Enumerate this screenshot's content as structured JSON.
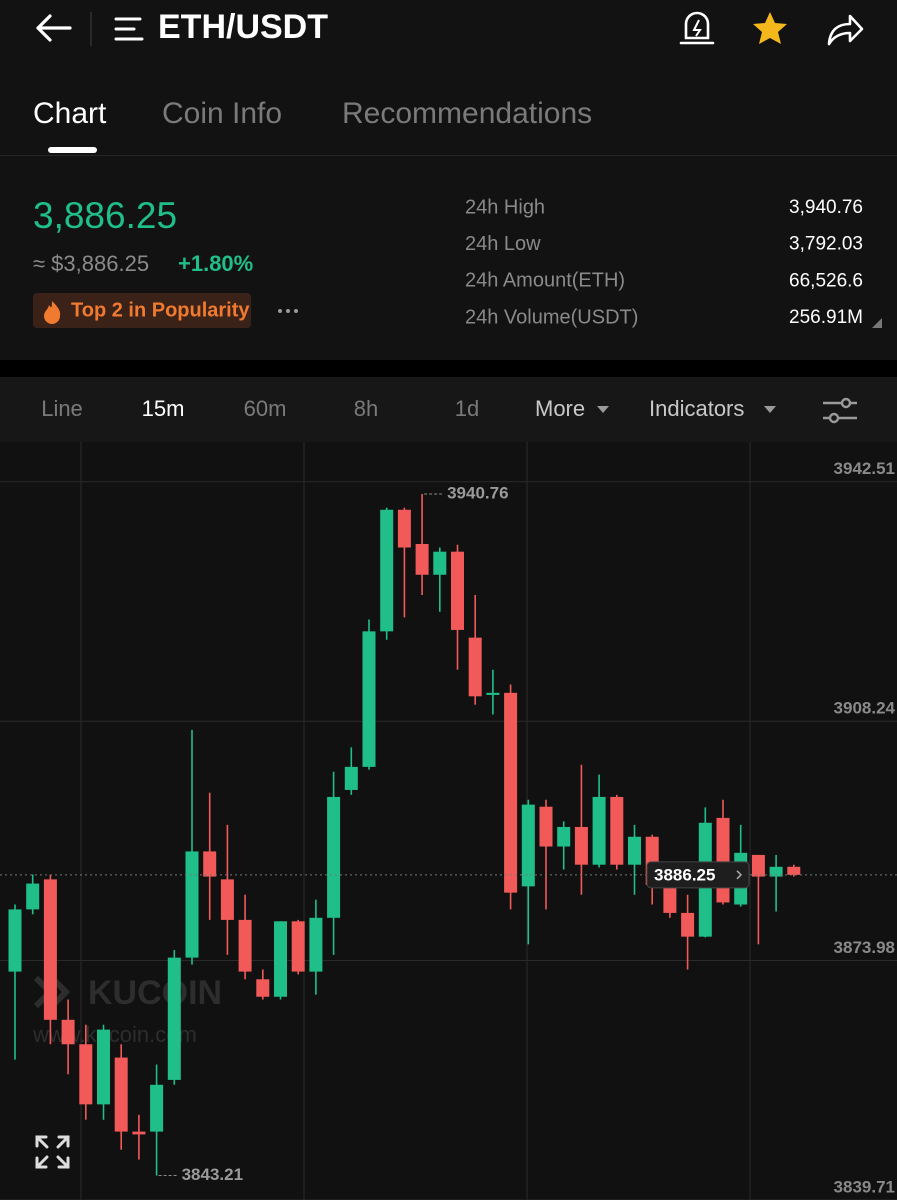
{
  "header": {
    "pair": "ETH/USDT"
  },
  "tabs": [
    "Chart",
    "Coin Info",
    "Recommendations"
  ],
  "price": {
    "last": "3,886.25",
    "approx": "≈ $3,886.25",
    "change": "+1.80%",
    "badge": "Top 2 in Popularity"
  },
  "stats": [
    {
      "label": "24h High",
      "value": "3,940.76"
    },
    {
      "label": "24h Low",
      "value": "3,792.03"
    },
    {
      "label": "24h Amount(ETH)",
      "value": "66,526.6"
    },
    {
      "label": "24h Volume(USDT)",
      "value": "256.91M"
    }
  ],
  "intervals": [
    "Line",
    "15m",
    "60m",
    "8h",
    "1d",
    "More",
    "Indicators"
  ],
  "chart_data": {
    "type": "candlestick",
    "open": [
      3872.4,
      3881.3,
      3885.6,
      3865.5,
      3862.0,
      3853.4,
      3860.1,
      3849.5,
      3849.5,
      3856.9,
      3874.4,
      3889.6,
      3885.6,
      3879.8,
      3871.3,
      3868.8,
      3879.6,
      3872.4,
      3880.1,
      3898.4,
      3901.7,
      3921.1,
      3938.5,
      3933.6,
      3929.2,
      3932.5,
      3920.2,
      3912.0,
      3912.3,
      3884.6,
      3896.0,
      3890.3,
      3893.1,
      3887.7,
      3897.4,
      3887.7,
      3891.7,
      3884.6,
      3880.8,
      3877.4,
      3894.4,
      3882.0,
      3889.1,
      3886.0,
      3887.4
    ],
    "high": [
      3882.0,
      3886.3,
      3886.3,
      3868.4,
      3864.8,
      3864.8,
      3862.0,
      3851.9,
      3859.1,
      3875.5,
      3907.0,
      3898.0,
      3893.4,
      3883.4,
      3872.7,
      3879.6,
      3879.8,
      3882.7,
      3901.0,
      3904.5,
      3922.8,
      3938.8,
      3938.8,
      3940.76,
      3933.1,
      3933.5,
      3926.3,
      3915.6,
      3913.5,
      3897.0,
      3897.0,
      3893.9,
      3902.0,
      3900.6,
      3897.7,
      3893.4,
      3892.0,
      3885.6,
      3883.4,
      3895.9,
      3897.0,
      3893.4,
      3889.1,
      3889.1,
      3887.7
    ],
    "low": [
      3859.8,
      3880.6,
      3862.0,
      3857.7,
      3851.2,
      3851.2,
      3846.9,
      3845.5,
      3843.21,
      3856.2,
      3873.4,
      3879.8,
      3874.8,
      3871.3,
      3868.4,
      3868.4,
      3872.0,
      3869.1,
      3874.8,
      3897.7,
      3901.3,
      3919.9,
      3923.1,
      3926.3,
      3923.9,
      3915.6,
      3910.6,
      3909.2,
      3881.3,
      3876.3,
      3881.3,
      3887.0,
      3883.4,
      3887.3,
      3887.0,
      3883.4,
      3882.0,
      3880.1,
      3872.7,
      3877.3,
      3882.0,
      3881.7,
      3876.3,
      3881.0,
      3886.0
    ],
    "close": [
      3881.3,
      3885.0,
      3865.5,
      3862.0,
      3853.4,
      3864.1,
      3849.5,
      3849.1,
      3856.2,
      3874.4,
      3889.6,
      3886.0,
      3879.8,
      3872.4,
      3868.8,
      3879.6,
      3872.4,
      3880.1,
      3897.4,
      3901.7,
      3921.1,
      3938.5,
      3933.1,
      3929.2,
      3932.5,
      3921.3,
      3911.8,
      3912.3,
      3883.7,
      3896.3,
      3890.3,
      3893.1,
      3887.7,
      3897.4,
      3887.7,
      3891.7,
      3884.8,
      3880.8,
      3877.4,
      3893.7,
      3882.3,
      3889.4,
      3886.0,
      3887.4,
      3886.25
    ],
    "up_color": "#20bf8a",
    "down_color": "#f25a5a",
    "ylim": [
      3839.71,
      3948.2
    ],
    "yticks": [
      3942.51,
      3908.24,
      3873.98,
      3839.71
    ],
    "grid": true,
    "watermark": "KUCOIN",
    "watermark_url": "www.kucoin.com"
  }
}
